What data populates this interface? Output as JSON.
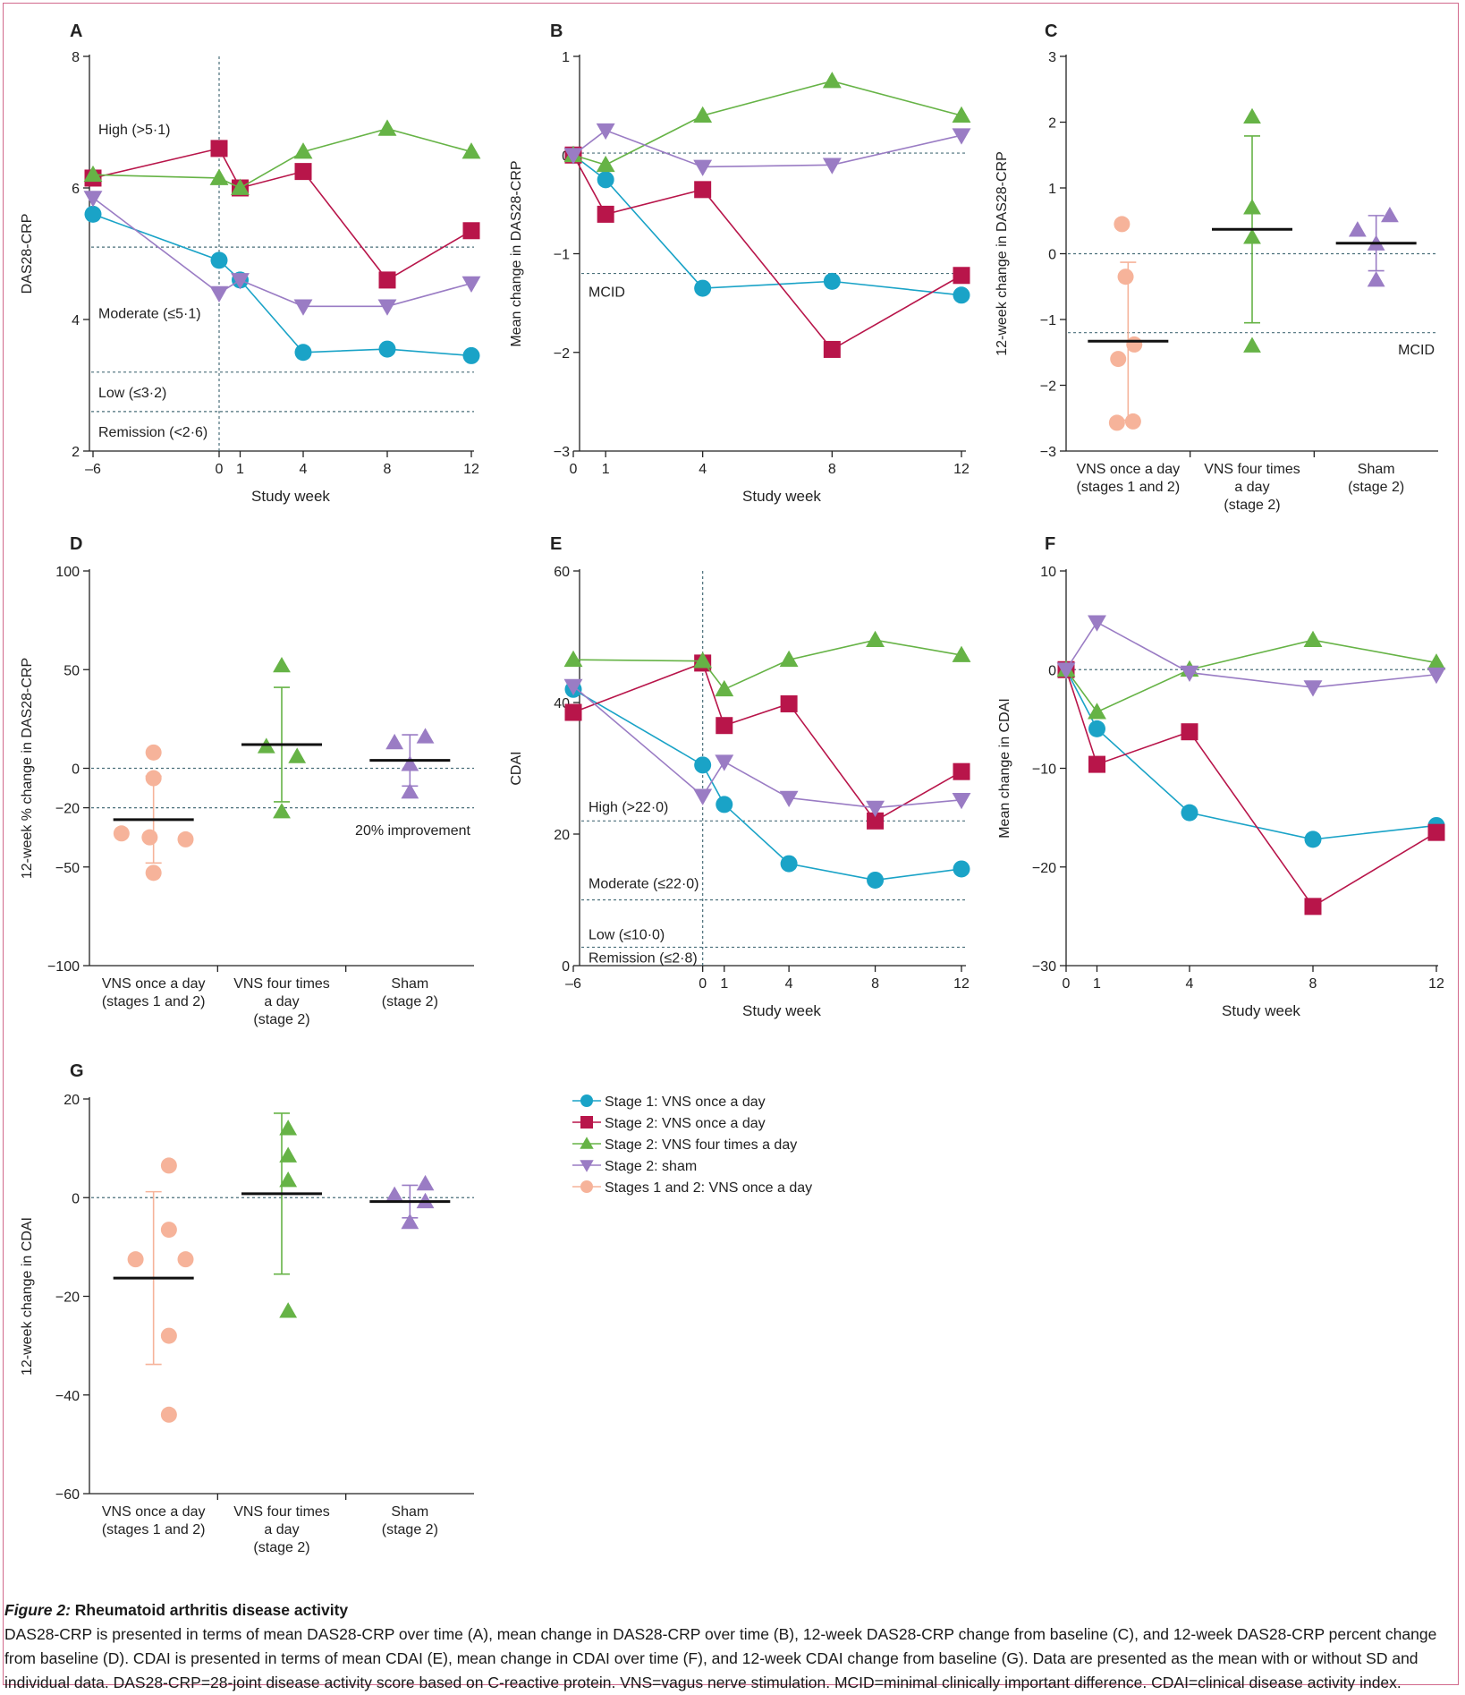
{
  "colors": {
    "stage1_once": "#1aa3c7",
    "stage2_once": "#b8154a",
    "stage2_four": "#66b346",
    "stage2_sham": "#9a7cc4",
    "stages12_once": "#f6b39a",
    "ref_line": "#4a6f7a"
  },
  "legend": [
    {
      "key": "stage1_once",
      "label": "Stage 1: VNS once a day",
      "marker": "circle"
    },
    {
      "key": "stage2_once",
      "label": "Stage 2: VNS once a day",
      "marker": "square"
    },
    {
      "key": "stage2_four",
      "label": "Stage 2: VNS four times a day",
      "marker": "triangle-up"
    },
    {
      "key": "stage2_sham",
      "label": "Stage 2: sham",
      "marker": "triangle-down"
    },
    {
      "key": "stages12_once",
      "label": "Stages 1 and 2: VNS once a day",
      "marker": "circle"
    }
  ],
  "group_labels": [
    [
      "VNS once a day",
      "(stages 1 and 2)"
    ],
    [
      "VNS four times",
      "a day",
      "(stage 2)"
    ],
    [
      "Sham",
      "(stage 2)"
    ]
  ],
  "chart_data": [
    {
      "id": "A",
      "type": "line",
      "panel_label": "A",
      "xlabel": "Study week",
      "ylabel": "DAS28-CRP",
      "xlim": [
        -6,
        12
      ],
      "ylim": [
        2,
        8
      ],
      "xticks": [
        -6,
        0,
        1,
        4,
        8,
        12
      ],
      "xtick_labels": [
        "–6",
        "0",
        "1",
        "4",
        "8",
        "12"
      ],
      "yticks": [
        2,
        4,
        6,
        8
      ],
      "ytick_labels": [
        "2",
        "4",
        "6",
        "8"
      ],
      "vline": 0,
      "hlines": [
        5.1,
        3.2,
        2.6
      ],
      "zone_labels": [
        {
          "text": "High (>5·1)",
          "y": 6.9
        },
        {
          "text": "Moderate (≤5·1)",
          "y": 4.1
        },
        {
          "text": "Low (≤3·2)",
          "y": 2.9
        },
        {
          "text": "Remission (<2·6)",
          "y": 2.3
        }
      ],
      "series": [
        {
          "key": "stage1_once",
          "marker": "circle",
          "x": [
            -6,
            0,
            1,
            4,
            8,
            12
          ],
          "y": [
            5.6,
            4.9,
            4.6,
            3.5,
            3.55,
            3.45
          ]
        },
        {
          "key": "stage2_once",
          "marker": "square",
          "x": [
            -6,
            0,
            1,
            4,
            8,
            12
          ],
          "y": [
            6.15,
            6.6,
            6.0,
            6.25,
            4.6,
            5.35
          ]
        },
        {
          "key": "stage2_four",
          "marker": "triangle-up",
          "x": [
            -6,
            0,
            1,
            4,
            8,
            12
          ],
          "y": [
            6.2,
            6.15,
            6.0,
            6.55,
            6.9,
            6.55
          ]
        },
        {
          "key": "stage2_sham",
          "marker": "triangle-down",
          "x": [
            -6,
            0,
            1,
            4,
            8,
            12
          ],
          "y": [
            5.85,
            4.4,
            4.6,
            4.2,
            4.2,
            4.55
          ]
        }
      ]
    },
    {
      "id": "B",
      "type": "line",
      "panel_label": "B",
      "xlabel": "Study week",
      "ylabel": "Mean change in DAS28-CRP",
      "xlim": [
        0,
        12
      ],
      "ylim": [
        -3,
        1
      ],
      "xticks": [
        0,
        1,
        4,
        8,
        12
      ],
      "xtick_labels": [
        "0",
        "1",
        "4",
        "8",
        "12"
      ],
      "yticks": [
        -3,
        -2,
        -1,
        0,
        1
      ],
      "ytick_labels": [
        "−3",
        "−2",
        "−1",
        "0",
        "1"
      ],
      "hlines": [
        0.02,
        -1.2
      ],
      "zone_labels": [
        {
          "text": "MCID",
          "y": -1.38
        }
      ],
      "series": [
        {
          "key": "stage1_once",
          "marker": "circle",
          "x": [
            0,
            1,
            4,
            8,
            12
          ],
          "y": [
            0.0,
            -0.25,
            -1.35,
            -1.28,
            -1.42
          ]
        },
        {
          "key": "stage2_once",
          "marker": "square",
          "x": [
            0,
            1,
            4,
            8,
            12
          ],
          "y": [
            0.0,
            -0.6,
            -0.35,
            -1.97,
            -1.22
          ]
        },
        {
          "key": "stage2_four",
          "marker": "triangle-up",
          "x": [
            0,
            1,
            4,
            8,
            12
          ],
          "y": [
            0.0,
            -0.1,
            0.4,
            0.75,
            0.4
          ]
        },
        {
          "key": "stage2_sham",
          "marker": "triangle-down",
          "x": [
            0,
            1,
            4,
            8,
            12
          ],
          "y": [
            0.0,
            0.25,
            -0.12,
            -0.1,
            0.2
          ]
        }
      ]
    },
    {
      "id": "C",
      "type": "scatter",
      "panel_label": "C",
      "ylabel": "12-week change in DAS28-CRP",
      "ylim": [
        -3,
        3
      ],
      "yticks": [
        -3,
        -2,
        -1,
        0,
        1,
        2,
        3
      ],
      "ytick_labels": [
        "−3",
        "−2",
        "−1",
        "0",
        "1",
        "2",
        "3"
      ],
      "hlines": [
        0,
        -1.2
      ],
      "ref_label": {
        "text": "MCID",
        "y": -1.45,
        "anchor": "end"
      },
      "groups": [
        {
          "key": "stages12_once",
          "marker": "circle",
          "mean": -1.33,
          "sd": 1.2,
          "points": [
            [
              -0.05,
              0.45
            ],
            [
              -0.02,
              -0.35
            ],
            [
              0.05,
              -1.38
            ],
            [
              -0.08,
              -1.6
            ],
            [
              -0.09,
              -2.57
            ],
            [
              0.04,
              -2.55
            ]
          ]
        },
        {
          "key": "stage2_four",
          "marker": "triangle-up",
          "mean": 0.37,
          "sd": 1.42,
          "points": [
            [
              0,
              2.08
            ],
            [
              0,
              0.7
            ],
            [
              0,
              0.25
            ],
            [
              0,
              -1.4
            ]
          ]
        },
        {
          "key": "stage2_sham",
          "marker": "triangle-up",
          "mean": 0.16,
          "sd": 0.42,
          "points": [
            [
              -0.15,
              0.36
            ],
            [
              0,
              0.15
            ],
            [
              0.11,
              0.58
            ],
            [
              0,
              -0.4
            ]
          ]
        }
      ]
    },
    {
      "id": "D",
      "type": "scatter",
      "panel_label": "D",
      "ylabel": "12-week % change in DAS28-CRP",
      "ylim": [
        -100,
        100
      ],
      "yticks": [
        -100,
        -50,
        -20,
        0,
        50,
        100
      ],
      "ytick_labels": [
        "−100",
        "−50",
        "−20",
        "0",
        "50",
        "100"
      ],
      "hlines": [
        0,
        -20
      ],
      "ref_label": {
        "text": "20% improvement",
        "y": -31,
        "anchor": "end"
      },
      "groups": [
        {
          "key": "stages12_once",
          "marker": "circle",
          "mean": -26,
          "sd": 22,
          "points": [
            [
              0,
              8
            ],
            [
              0,
              -5
            ],
            [
              -0.25,
              -33
            ],
            [
              -0.03,
              -35
            ],
            [
              0.25,
              -36
            ],
            [
              0,
              -53
            ]
          ]
        },
        {
          "key": "stage2_four",
          "marker": "triangle-up",
          "mean": 12,
          "sd": 29,
          "points": [
            [
              0,
              52
            ],
            [
              -0.12,
              11
            ],
            [
              0.12,
              6
            ],
            [
              0,
              -22
            ]
          ]
        },
        {
          "key": "stage2_sham",
          "marker": "triangle-up",
          "mean": 4,
          "sd": 13,
          "points": [
            [
              -0.12,
              13
            ],
            [
              0.12,
              16
            ],
            [
              0,
              2
            ],
            [
              0,
              -12
            ]
          ]
        }
      ]
    },
    {
      "id": "E",
      "type": "line",
      "panel_label": "E",
      "xlabel": "Study week",
      "ylabel": "CDAI",
      "xlim": [
        -6,
        12
      ],
      "ylim": [
        0,
        60
      ],
      "xticks": [
        -6,
        0,
        1,
        4,
        8,
        12
      ],
      "xtick_labels": [
        "–6",
        "0",
        "1",
        "4",
        "8",
        "12"
      ],
      "yticks": [
        0,
        20,
        40,
        60
      ],
      "ytick_labels": [
        "0",
        "20",
        "40",
        "60"
      ],
      "vline": 0,
      "hlines": [
        22,
        10,
        2.8
      ],
      "zone_labels": [
        {
          "text": "High (>22·0)",
          "y": 24.2
        },
        {
          "text": "Moderate (≤22·0)",
          "y": 12.6
        },
        {
          "text": "Low (≤10·0)",
          "y": 4.8
        },
        {
          "text": "Remission (≤2·8)",
          "y": 1.3
        }
      ],
      "series": [
        {
          "key": "stage1_once",
          "marker": "circle",
          "x": [
            -6,
            0,
            1,
            4,
            8,
            12
          ],
          "y": [
            42,
            30.5,
            24.5,
            15.5,
            13,
            14.7
          ]
        },
        {
          "key": "stage2_once",
          "marker": "square",
          "x": [
            -6,
            0,
            1,
            4,
            8,
            12
          ],
          "y": [
            38.5,
            46,
            36.5,
            39.8,
            22,
            29.5
          ]
        },
        {
          "key": "stage2_four",
          "marker": "triangle-up",
          "x": [
            -6,
            0,
            1,
            4,
            8,
            12
          ],
          "y": [
            46.5,
            46.3,
            42,
            46.5,
            49.5,
            47.2
          ]
        },
        {
          "key": "stage2_sham",
          "marker": "triangle-down",
          "x": [
            -6,
            0,
            1,
            4,
            8,
            12
          ],
          "y": [
            42.5,
            25.8,
            31,
            25.5,
            24,
            25.2
          ]
        }
      ]
    },
    {
      "id": "F",
      "type": "line",
      "panel_label": "F",
      "xlabel": "Study week",
      "ylabel": "Mean change in CDAI",
      "xlim": [
        0,
        12
      ],
      "ylim": [
        -30,
        10
      ],
      "xticks": [
        0,
        1,
        4,
        8,
        12
      ],
      "xtick_labels": [
        "0",
        "1",
        "4",
        "8",
        "12"
      ],
      "yticks": [
        -30,
        -20,
        -10,
        0,
        10
      ],
      "ytick_labels": [
        "−30",
        "−20",
        "−10",
        "0",
        "10"
      ],
      "hlines": [
        0
      ],
      "series": [
        {
          "key": "stage1_once",
          "marker": "circle",
          "x": [
            0,
            1,
            4,
            8,
            12
          ],
          "y": [
            0,
            -6,
            -14.5,
            -17.2,
            -15.8
          ]
        },
        {
          "key": "stage2_once",
          "marker": "square",
          "x": [
            0,
            1,
            4,
            8,
            12
          ],
          "y": [
            0,
            -9.6,
            -6.3,
            -24,
            -16.5
          ]
        },
        {
          "key": "stage2_four",
          "marker": "triangle-up",
          "x": [
            0,
            1,
            4,
            8,
            12
          ],
          "y": [
            0,
            -4.3,
            0,
            3,
            0.7
          ]
        },
        {
          "key": "stage2_sham",
          "marker": "triangle-down",
          "x": [
            0,
            1,
            4,
            8,
            12
          ],
          "y": [
            0,
            4.8,
            -0.3,
            -1.8,
            -0.5
          ]
        }
      ]
    },
    {
      "id": "G",
      "type": "scatter",
      "panel_label": "G",
      "ylabel": "12-week change in CDAI",
      "ylim": [
        -60,
        20
      ],
      "yticks": [
        -60,
        -40,
        -20,
        0,
        20
      ],
      "ytick_labels": [
        "−60",
        "−40",
        "−20",
        "0",
        "20"
      ],
      "hlines": [
        0
      ],
      "groups": [
        {
          "key": "stages12_once",
          "marker": "circle",
          "mean": -16.3,
          "sd": 17.5,
          "points": [
            [
              0.12,
              6.5
            ],
            [
              0.12,
              -6.5
            ],
            [
              -0.14,
              -12.5
            ],
            [
              0.25,
              -12.5
            ],
            [
              0.12,
              -28
            ],
            [
              0.12,
              -44
            ]
          ]
        },
        {
          "key": "stage2_four",
          "marker": "triangle-up",
          "mean": 0.8,
          "sd": 16.3,
          "points": [
            [
              0.05,
              14
            ],
            [
              0.05,
              8.5
            ],
            [
              0.05,
              3.5
            ],
            [
              0.05,
              -23
            ]
          ]
        },
        {
          "key": "stage2_sham",
          "marker": "triangle-up",
          "mean": -0.8,
          "sd": 3.3,
          "points": [
            [
              -0.12,
              0.5
            ],
            [
              0.12,
              2.8
            ],
            [
              0.12,
              -0.8
            ],
            [
              0,
              -5
            ]
          ]
        }
      ]
    }
  ],
  "caption": {
    "figure_label": "Figure 2:",
    "title": "Rheumatoid arthritis disease activity",
    "body": "DAS28-CRP is presented in terms of mean DAS28-CRP over time (A), mean change in DAS28-CRP over time (B), 12-week DAS28-CRP change from baseline (C), and 12-week DAS28-CRP percent change from baseline (D). CDAI is presented in terms of mean CDAI (E), mean change in CDAI over time (F), and 12-week CDAI change from baseline (G). Data are presented as the mean with or without SD and individual data. DAS28-CRP=28-joint disease activity score based on C-reactive protein. VNS=vagus nerve stimulation. MCID=minimal clinically important difference. CDAI=clinical disease activity index."
  }
}
